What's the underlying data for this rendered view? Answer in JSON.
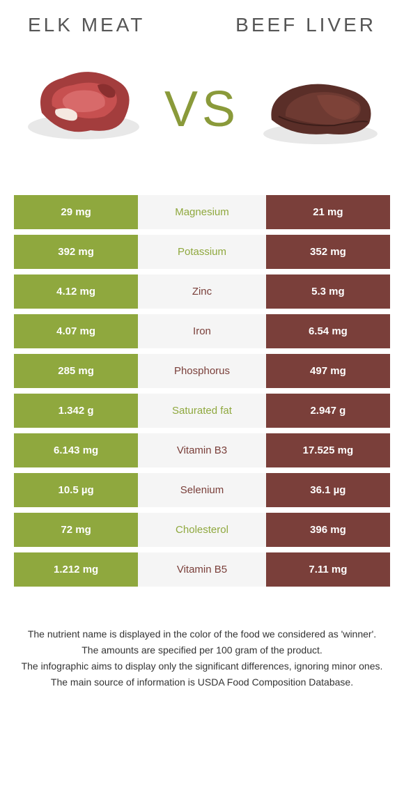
{
  "colors": {
    "left": "#8fa83e",
    "right": "#7a3f3a",
    "vs": "#8a9a3a"
  },
  "food_left": {
    "title": "ELK MEAT"
  },
  "food_right": {
    "title": "BEEF LIVER"
  },
  "vs_text": "VS",
  "rows": [
    {
      "left": "29 mg",
      "nutrient": "Magnesium",
      "right": "21 mg",
      "winner": "left"
    },
    {
      "left": "392 mg",
      "nutrient": "Potassium",
      "right": "352 mg",
      "winner": "left"
    },
    {
      "left": "4.12 mg",
      "nutrient": "Zinc",
      "right": "5.3 mg",
      "winner": "right"
    },
    {
      "left": "4.07 mg",
      "nutrient": "Iron",
      "right": "6.54 mg",
      "winner": "right"
    },
    {
      "left": "285 mg",
      "nutrient": "Phosphorus",
      "right": "497 mg",
      "winner": "right"
    },
    {
      "left": "1.342 g",
      "nutrient": "Saturated fat",
      "right": "2.947 g",
      "winner": "left"
    },
    {
      "left": "6.143 mg",
      "nutrient": "Vitamin B3",
      "right": "17.525 mg",
      "winner": "right"
    },
    {
      "left": "10.5 µg",
      "nutrient": "Selenium",
      "right": "36.1 µg",
      "winner": "right"
    },
    {
      "left": "72 mg",
      "nutrient": "Cholesterol",
      "right": "396 mg",
      "winner": "left"
    },
    {
      "left": "1.212 mg",
      "nutrient": "Vitamin B5",
      "right": "7.11 mg",
      "winner": "right"
    }
  ],
  "footnotes": [
    "The nutrient name is displayed in the color of the food we considered as 'winner'.",
    "The amounts are specified per 100 gram of the product.",
    "The infographic aims to display only the significant differences, ignoring minor ones.",
    "The main source of information is USDA Food Composition Database."
  ]
}
